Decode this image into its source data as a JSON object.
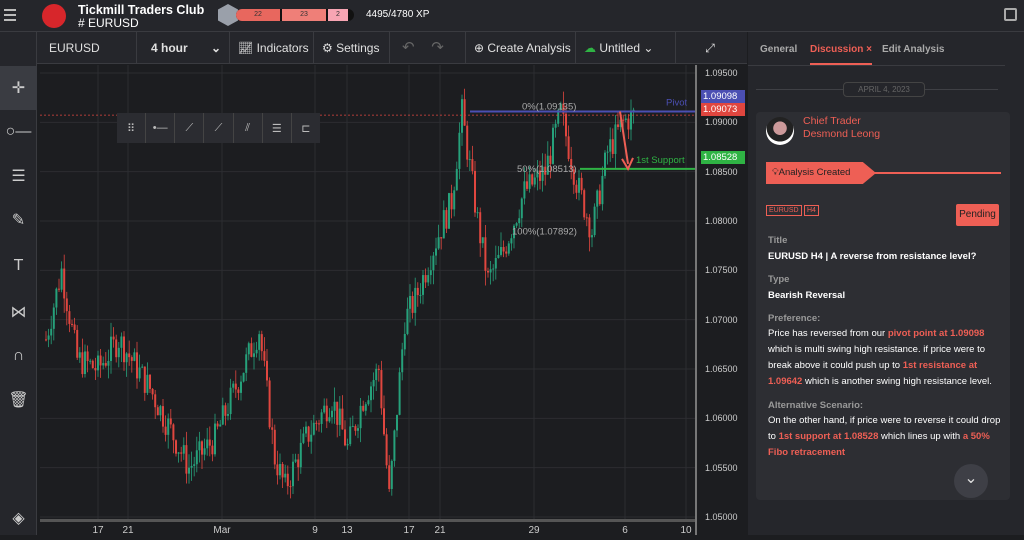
{
  "app": {
    "club_name": "Tickmill Traders Club",
    "channel": "# EURUSD",
    "xp_segments": [
      "22",
      "23",
      "2"
    ],
    "xp_text": "4495/4780 XP"
  },
  "toolbar": {
    "symbol": "EURUSD",
    "interval": "4 hour",
    "indicators": "Indicators",
    "settings": "Settings",
    "undo": "↶",
    "redo": "↷",
    "create_analysis": "Create Analysis",
    "layout_name": "Untitled"
  },
  "chart": {
    "symbol": "EURUSD",
    "price_ticks": [
      "1.09500",
      "1.09000",
      "1.08500",
      "1.08000",
      "1.07500",
      "1.07000",
      "1.06500",
      "1.06000",
      "1.05500",
      "1.05000"
    ],
    "time_ticks": [
      "17",
      "21",
      "Mar",
      "9",
      "13",
      "17",
      "21",
      "29",
      "6",
      "10"
    ],
    "current_price": "1.09073",
    "pivot_price_tag": "1.09098",
    "support_price_tag": "1.08528",
    "pivot_label": "Pivot",
    "support_label": "1st Support",
    "fib_0": "0%(1.09135)",
    "fib_50": "50%(1.08513)",
    "fib_100": "100%(1.07892)",
    "colors": {
      "up": "#26a17b",
      "down": "#e0463f",
      "pivot": "#4b4fb3",
      "support": "#2fb344",
      "current": "#e0463f"
    },
    "price_path": [
      [
        0,
        1.068
      ],
      [
        6,
        1.075
      ],
      [
        12,
        1.066
      ],
      [
        20,
        1.065
      ],
      [
        28,
        1.068
      ],
      [
        40,
        1.063
      ],
      [
        55,
        1.055
      ],
      [
        65,
        1.058
      ],
      [
        82,
        1.069
      ],
      [
        88,
        1.056
      ],
      [
        92,
        1.053
      ],
      [
        100,
        1.058
      ],
      [
        110,
        1.062
      ],
      [
        116,
        1.057
      ],
      [
        122,
        1.062
      ],
      [
        128,
        1.065
      ],
      [
        132,
        1.052
      ],
      [
        138,
        1.07
      ],
      [
        142,
        1.072
      ],
      [
        150,
        1.078
      ],
      [
        156,
        1.082
      ],
      [
        160,
        1.091
      ],
      [
        166,
        1.08
      ],
      [
        170,
        1.074
      ],
      [
        176,
        1.077
      ],
      [
        184,
        1.083
      ],
      [
        192,
        1.085
      ],
      [
        198,
        1.091
      ],
      [
        204,
        1.084
      ],
      [
        210,
        1.079
      ],
      [
        216,
        1.087
      ],
      [
        222,
        1.09
      ],
      [
        226,
        1.0907
      ]
    ]
  },
  "panel": {
    "tabs": [
      "General",
      "Discussion",
      "Edit Analysis"
    ],
    "close": "×",
    "date": "APRIL 4, 2023",
    "author_role": "Chief Trader",
    "author_name": "Desmond Leong",
    "event": "Analysis Created",
    "tags": [
      "EURUSD",
      "H4"
    ],
    "status": "Pending",
    "title_label": "Title",
    "title": "EURUSD H4 | A reverse from resistance level?",
    "type_label": "Type",
    "type": "Bearish Reversal",
    "pref_label": "Preference:",
    "pref": [
      "Price has reversed from our ",
      "pivot point at 1.09098",
      " which is multi swing high resistance. if price were to break above it could push up to ",
      "1st resistance at 1.09642",
      " which is another swing high resistance level."
    ],
    "alt_label": "Alternative Scenario:",
    "alt": [
      "On the other hand, if price were to reverse it could drop to ",
      "1st support at 1.08528",
      " which lines up with ",
      "a 50% Fibo retracement"
    ]
  }
}
